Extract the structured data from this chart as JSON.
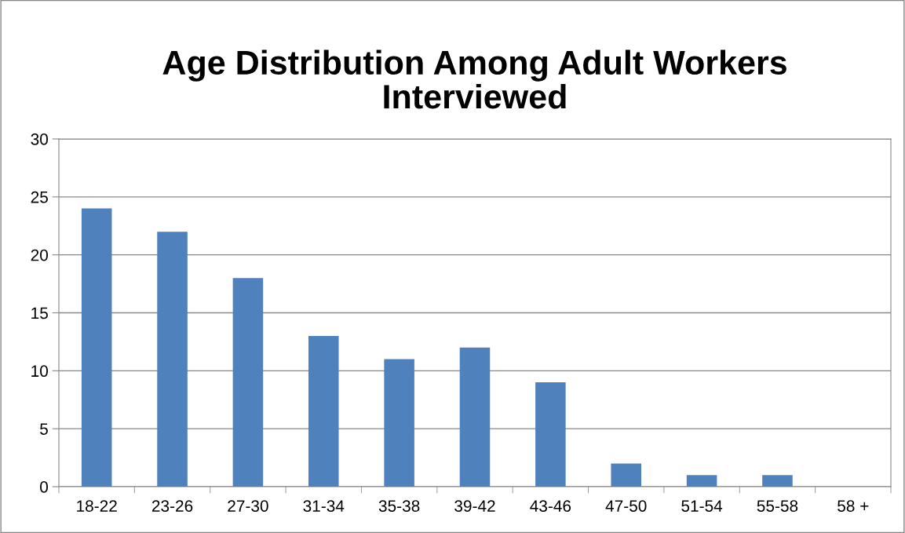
{
  "chart_data": {
    "type": "bar",
    "title": "Age Distribution Among Adult Workers\nInterviewed",
    "categories": [
      "18-22",
      "23-26",
      "27-30",
      "31-34",
      "35-38",
      "39-42",
      "43-46",
      "47-50",
      "51-54",
      "55-58",
      "58 +"
    ],
    "values": [
      24,
      22,
      18,
      13,
      11,
      12,
      9,
      2,
      1,
      1,
      0
    ],
    "color": "#4f81bd",
    "ylim": [
      0,
      30
    ],
    "yticks": [
      0,
      5,
      10,
      15,
      20,
      25,
      30
    ],
    "grid": "y"
  }
}
